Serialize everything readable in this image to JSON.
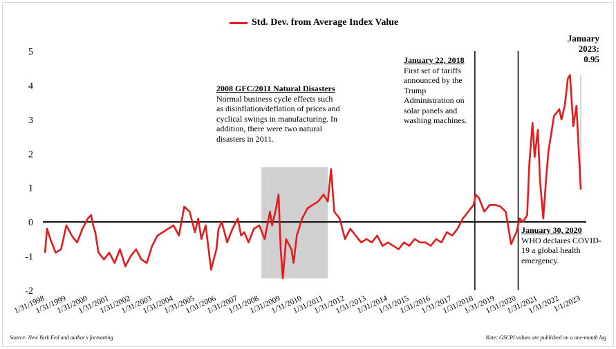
{
  "chart_data": {
    "type": "line",
    "title": "",
    "legend": "Std. Dev. from Average Index Value",
    "xlabel": "",
    "ylabel": "",
    "ylim": [
      -2,
      5
    ],
    "yticks": [
      "-2",
      "-1",
      "0",
      "1",
      "2",
      "3",
      "4",
      "5"
    ],
    "xtick_labels": [
      "1/31/1998",
      "1/31/1999",
      "1/31/2000",
      "1/31/2001",
      "1/31/2002",
      "1/31/2003",
      "1/31/2004",
      "1/31/2005",
      "1/31/2006",
      "1/31/2007",
      "1/31/2008",
      "1/31/2009",
      "1/31/2010",
      "1/31/2011",
      "1/31/2012",
      "1/31/2013",
      "1/31/2014",
      "1/31/2015",
      "1/31/2016",
      "1/31/2017",
      "1/31/2018",
      "1/31/2019",
      "1/31/2020",
      "1/31/2021",
      "1/31/2022",
      "1/1/2023"
    ],
    "color": "#e41a1c",
    "series": [
      {
        "name": "Std. Dev. from Average Index Value",
        "x": [
          1998.0,
          1998.1,
          1998.25,
          1998.5,
          1998.75,
          1999.0,
          1999.25,
          1999.5,
          1999.75,
          2000.0,
          2000.15,
          2000.25,
          2000.35,
          2000.5,
          2000.75,
          2001.0,
          2001.25,
          2001.5,
          2001.75,
          2002.0,
          2002.25,
          2002.5,
          2002.75,
          2003.0,
          2003.25,
          2003.5,
          2003.75,
          2004.0,
          2004.25,
          2004.5,
          2004.75,
          2005.0,
          2005.15,
          2005.3,
          2005.5,
          2005.75,
          2006.0,
          2006.1,
          2006.25,
          2006.5,
          2006.75,
          2007.0,
          2007.15,
          2007.3,
          2007.5,
          2007.75,
          2008.0,
          2008.25,
          2008.5,
          2008.6,
          2008.75,
          2008.9,
          2009.0,
          2009.1,
          2009.25,
          2009.5,
          2009.6,
          2009.75,
          2010.0,
          2010.25,
          2010.5,
          2010.75,
          2011.0,
          2011.2,
          2011.35,
          2011.5,
          2011.75,
          2012.0,
          2012.25,
          2012.5,
          2012.75,
          2013.0,
          2013.25,
          2013.5,
          2013.75,
          2014.0,
          2014.25,
          2014.5,
          2014.75,
          2015.0,
          2015.25,
          2015.5,
          2015.75,
          2016.0,
          2016.25,
          2016.5,
          2016.75,
          2017.0,
          2017.25,
          2017.5,
          2017.75,
          2018.0,
          2018.1,
          2018.25,
          2018.5,
          2018.75,
          2019.0,
          2019.25,
          2019.5,
          2019.75,
          2020.0,
          2020.15,
          2020.3,
          2020.5,
          2020.6,
          2020.75,
          2020.85,
          2021.0,
          2021.1,
          2021.25,
          2021.4,
          2021.5,
          2021.75,
          2022.0,
          2022.1,
          2022.25,
          2022.4,
          2022.5,
          2022.65,
          2022.8,
          2023.0
        ],
        "values": [
          -0.9,
          -0.2,
          -0.5,
          -0.9,
          -0.8,
          -0.1,
          -0.4,
          -0.6,
          -0.2,
          0.1,
          0.2,
          -0.1,
          -0.3,
          -0.9,
          -1.1,
          -0.9,
          -1.2,
          -0.8,
          -1.3,
          -1.0,
          -0.8,
          -1.1,
          -1.2,
          -0.7,
          -0.4,
          -0.3,
          -0.2,
          -0.1,
          -0.4,
          0.45,
          0.3,
          -0.3,
          0.1,
          -0.5,
          -0.1,
          -1.4,
          -0.8,
          -0.2,
          0.0,
          -0.6,
          -0.2,
          0.1,
          -0.4,
          -0.3,
          -0.6,
          -0.2,
          -0.1,
          -0.5,
          0.3,
          -0.1,
          0.3,
          0.8,
          -0.8,
          -1.65,
          -0.5,
          -0.8,
          -1.2,
          -0.4,
          0.1,
          0.4,
          0.5,
          0.6,
          0.8,
          0.6,
          1.55,
          0.3,
          0.1,
          -0.5,
          -0.2,
          -0.4,
          -0.6,
          -0.5,
          -0.6,
          -0.4,
          -0.7,
          -0.6,
          -0.7,
          -0.8,
          -0.6,
          -0.7,
          -0.5,
          -0.6,
          -0.6,
          -0.7,
          -0.5,
          -0.6,
          -0.3,
          -0.4,
          -0.2,
          0.1,
          0.3,
          0.5,
          0.8,
          0.7,
          0.3,
          0.5,
          0.5,
          0.45,
          0.3,
          -0.65,
          -0.3,
          0.1,
          0.0,
          0.2,
          1.7,
          2.9,
          1.9,
          2.7,
          1.2,
          0.1,
          1.4,
          2.1,
          3.1,
          3.3,
          3.0,
          3.4,
          4.2,
          4.3,
          2.8,
          3.4,
          0.95
        ]
      }
    ]
  },
  "legend": {
    "label": "Std. Dev. from Average Index Value"
  },
  "annotations": {
    "gfc": {
      "heading": "2008 GFC/2011 Natural Disasters",
      "text": "Normal business cycle effects such as disinflation/deflation of prices and cyclical swings in manufacturing. In addition, there were two natural disasters in 2011."
    },
    "tariff": {
      "heading": "January 22, 2018",
      "text": "First set of tariffs announced by the Trump Administration on solar panels and washing machines."
    },
    "covid": {
      "heading": "January 30, 2020",
      "text": "WHO declares COVID-19 a global health emergency."
    },
    "jan2023": {
      "label": "January 2023:",
      "value": "0.95"
    }
  },
  "footer": {
    "source": "Source: New York Fed and author's formatting",
    "note": "Note: GSCPI values are published on a one-month lag"
  }
}
